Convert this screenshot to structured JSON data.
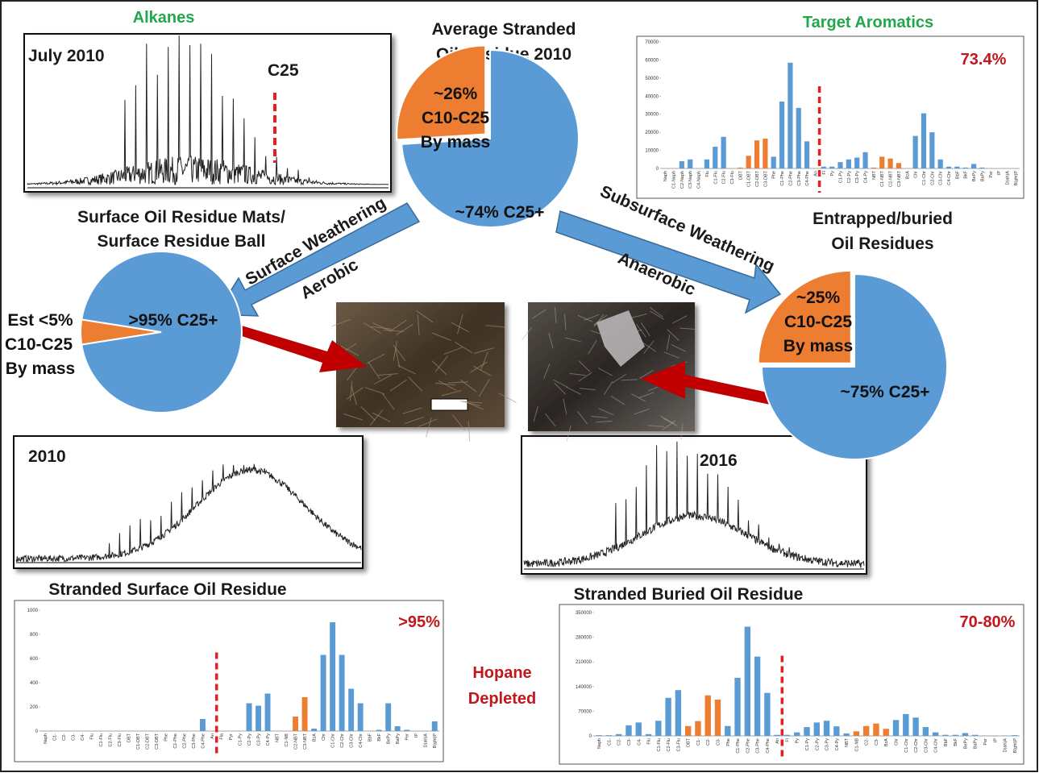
{
  "labels": {
    "alkanes": "Alkanes",
    "july": "July 2010",
    "c25": "C25",
    "avg1": "Average Stranded",
    "avg2": "Oil Residue 2010",
    "target": "Target Aromatics",
    "pct_target": "73.4%",
    "surf1": "Surface Oil Residue Mats/",
    "surf2": "Surface Residue Ball",
    "ent1": "Entrapped/buried",
    "ent2": "Oil Residues",
    "sw": "Surface Weathering",
    "aer": "Aerobic",
    "ssw": "Subsurface Weathering",
    "ana": "Anaerobic",
    "y2010": "2010",
    "y2016": "2016",
    "sso": "Stranded Surface Oil Residue",
    "sbo": "Stranded Buried Oil Residue",
    "pct_surf": ">95%",
    "pct_bur": "70-80%",
    "hop1": "Hopane",
    "hop2": "Depleted"
  },
  "chart_data": [
    {
      "type": "pie",
      "values": [
        26,
        74
      ],
      "value_labels": [
        "~26%",
        "~74% C25+"
      ],
      "colors": [
        "#ed7d31",
        "#5b9bd5"
      ],
      "texts": [
        "C10-C25",
        "By mass"
      ]
    },
    {
      "type": "pie",
      "values": [
        5,
        95
      ],
      "value_labels": [
        "Est <5%",
        ">95%  C25+"
      ],
      "colors": [
        "#ed7d31",
        "#5b9bd5"
      ],
      "texts": [
        "C10-C25",
        "By mass"
      ]
    },
    {
      "type": "pie",
      "values": [
        25,
        75
      ],
      "value_labels": [
        "~25%",
        "~75% C25+"
      ],
      "colors": [
        "#ed7d31",
        "#5b9bd5"
      ],
      "texts": [
        "C10-C25",
        "By mass"
      ]
    },
    {
      "type": "bar",
      "ylim": [
        0,
        70000
      ],
      "yticks": [
        0,
        10000,
        20000,
        30000,
        40000,
        50000,
        60000,
        70000
      ],
      "categories": [
        "Naph",
        "C1-Naph",
        "C2-Naph",
        "C3-Naph",
        "C4-Naph",
        "Flu",
        "C1-Flu",
        "C2-Flu",
        "C3-Flu",
        "DBT",
        "C1-DBT",
        "C2-DBT",
        "C3-DBT",
        "Phe",
        "C1-Phe",
        "C2-Phe",
        "C3-Phe",
        "C4-Phe",
        "An",
        "Fl",
        "Py",
        "C1-Py",
        "C2-Py",
        "C3-Py",
        "C4-Py",
        "NBT",
        "C1-NBT",
        "C2-NBT",
        "C3-NBT",
        "BzA",
        "Chr",
        "C1-Chr",
        "C2-Chr",
        "C3-Chr",
        "C4-Chr",
        "BbF",
        "BkF",
        "BePy",
        "BaPy",
        "Per",
        "IP",
        "D(ah)A",
        "B(ghi)P"
      ],
      "values": [
        0,
        0,
        4000,
        5000,
        0,
        5000,
        12000,
        17500,
        0,
        500,
        7000,
        15500,
        16500,
        6500,
        37000,
        58500,
        33500,
        15000,
        0,
        1000,
        1000,
        3500,
        5000,
        6000,
        9000,
        500,
        6500,
        5500,
        3000,
        0,
        18000,
        30500,
        20000,
        5000,
        1000,
        1000,
        500,
        2500,
        500,
        0,
        0,
        0,
        0
      ],
      "colors": [
        "#5b9bd5",
        "#5b9bd5",
        "#5b9bd5",
        "#5b9bd5",
        "#5b9bd5",
        "#5b9bd5",
        "#5b9bd5",
        "#5b9bd5",
        "#5b9bd5",
        "#ed7d31",
        "#ed7d31",
        "#ed7d31",
        "#ed7d31",
        "#5b9bd5",
        "#5b9bd5",
        "#5b9bd5",
        "#5b9bd5",
        "#5b9bd5",
        "#5b9bd5",
        "#5b9bd5",
        "#5b9bd5",
        "#5b9bd5",
        "#5b9bd5",
        "#5b9bd5",
        "#5b9bd5",
        "#ed7d31",
        "#ed7d31",
        "#ed7d31",
        "#ed7d31",
        "#5b9bd5",
        "#5b9bd5",
        "#5b9bd5",
        "#5b9bd5",
        "#5b9bd5",
        "#5b9bd5",
        "#5b9bd5",
        "#5b9bd5",
        "#5b9bd5",
        "#5b9bd5",
        "#5b9bd5",
        "#5b9bd5",
        "#5b9bd5",
        "#5b9bd5"
      ]
    },
    {
      "type": "bar",
      "ylim": [
        0,
        1000
      ],
      "yticks": [
        0,
        200,
        400,
        600,
        800,
        1000
      ],
      "categories": [
        "Naph",
        "C1-",
        "C2-",
        "C3-",
        "C4-",
        "Flu",
        "C1-Flu",
        "C2-Flu",
        "C3-Flu",
        "DBT",
        "C1-DBT",
        "C2-DBT",
        "C3-DBT",
        "Phe",
        "C1-Phe",
        "C2-Phe",
        "C3-Phe",
        "C4-Phe",
        "An",
        "Fla",
        "Pyr",
        "C1-Py",
        "C2-Py",
        "C3-Py",
        "C4-Py",
        "NBT",
        "C1-NB",
        "C2-NBT",
        "C3-NBT",
        "BzA",
        "Chr",
        "C1-Chr",
        "C2-Chr",
        "C3-Chr",
        "C4-Chr",
        "BbF",
        "BkF",
        "BePy",
        "BaPy",
        "Per",
        "IP",
        "D(ah)A",
        "B(ghi)P"
      ],
      "values": [
        0,
        0,
        0,
        0,
        0,
        0,
        0,
        0,
        0,
        0,
        0,
        0,
        0,
        0,
        0,
        0,
        0,
        100,
        0,
        0,
        0,
        0,
        230,
        210,
        310,
        0,
        0,
        120,
        280,
        20,
        630,
        900,
        630,
        350,
        230,
        0,
        10,
        230,
        40,
        10,
        0,
        0,
        80
      ],
      "colors": [
        "#5b9bd5",
        "#5b9bd5",
        "#5b9bd5",
        "#5b9bd5",
        "#5b9bd5",
        "#5b9bd5",
        "#5b9bd5",
        "#5b9bd5",
        "#5b9bd5",
        "#ed7d31",
        "#ed7d31",
        "#ed7d31",
        "#ed7d31",
        "#5b9bd5",
        "#5b9bd5",
        "#5b9bd5",
        "#5b9bd5",
        "#5b9bd5",
        "#5b9bd5",
        "#5b9bd5",
        "#5b9bd5",
        "#5b9bd5",
        "#5b9bd5",
        "#5b9bd5",
        "#5b9bd5",
        "#ed7d31",
        "#ed7d31",
        "#ed7d31",
        "#ed7d31",
        "#5b9bd5",
        "#5b9bd5",
        "#5b9bd5",
        "#5b9bd5",
        "#5b9bd5",
        "#5b9bd5",
        "#5b9bd5",
        "#5b9bd5",
        "#5b9bd5",
        "#5b9bd5",
        "#5b9bd5",
        "#5b9bd5",
        "#5b9bd5",
        "#5b9bd5"
      ]
    },
    {
      "type": "bar",
      "ylim": [
        0,
        350000
      ],
      "yticks": [
        0,
        70000,
        140000,
        210000,
        280000,
        350000
      ],
      "categories": [
        "Naph",
        "C1-",
        "C2-",
        "C3-",
        "C4-",
        "Flu",
        "C1-Flu",
        "C2-Flu",
        "C3-Flu",
        "DBT",
        "C1-",
        "C2-",
        "C3-",
        "Phe",
        "C1-Phe",
        "C2-Phe",
        "C3-Phe",
        "C4-Phe",
        "An",
        "Fl",
        "Py",
        "C1-Py",
        "C2-Py",
        "C3-Py",
        "C4-Py",
        "NBT",
        "C1-NB",
        "C2-",
        "C3-",
        "BzA",
        "Chr",
        "C1-Chr",
        "C2-Chr",
        "C3-Chr",
        "C4-Chr",
        "BbF",
        "BkF",
        "BePy",
        "BaPy",
        "Per",
        "IP",
        "D(ah)A",
        "B(ghi)P"
      ],
      "values": [
        2000,
        2000,
        5000,
        30000,
        38000,
        5000,
        43000,
        108000,
        130000,
        28000,
        42000,
        115000,
        103000,
        28000,
        165000,
        310000,
        225000,
        122000,
        3000,
        3000,
        10000,
        25000,
        38000,
        43000,
        27000,
        7000,
        13000,
        28000,
        35000,
        20000,
        45000,
        62000,
        52000,
        25000,
        10000,
        3000,
        3000,
        8000,
        3000,
        1000,
        1000,
        1000,
        2000
      ],
      "colors": [
        "#5b9bd5",
        "#5b9bd5",
        "#5b9bd5",
        "#5b9bd5",
        "#5b9bd5",
        "#5b9bd5",
        "#5b9bd5",
        "#5b9bd5",
        "#5b9bd5",
        "#ed7d31",
        "#ed7d31",
        "#ed7d31",
        "#ed7d31",
        "#5b9bd5",
        "#5b9bd5",
        "#5b9bd5",
        "#5b9bd5",
        "#5b9bd5",
        "#5b9bd5",
        "#5b9bd5",
        "#5b9bd5",
        "#5b9bd5",
        "#5b9bd5",
        "#5b9bd5",
        "#5b9bd5",
        "#5b9bd5",
        "#ed7d31",
        "#ed7d31",
        "#ed7d31",
        "#ed7d31",
        "#5b9bd5",
        "#5b9bd5",
        "#5b9bd5",
        "#5b9bd5",
        "#5b9bd5",
        "#5b9bd5",
        "#5b9bd5",
        "#5b9bd5",
        "#5b9bd5",
        "#5b9bd5",
        "#5b9bd5",
        "#5b9bd5",
        "#5b9bd5"
      ]
    }
  ]
}
